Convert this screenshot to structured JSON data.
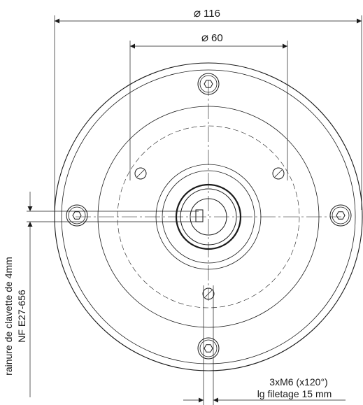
{
  "dimensions": {
    "outer_diameter": {
      "symbol": "⌀",
      "value": "116"
    },
    "bolt_circle_diameter": {
      "symbol": "⌀",
      "value": "60"
    }
  },
  "side_note": {
    "line1": "rainure de clavette de 4mm",
    "line2": "NF E27-656"
  },
  "thread_note": {
    "line1": "3xM6 (x120°)",
    "line2": "lg filetage 15 mm"
  },
  "colors": {
    "line": "#1a1a1a",
    "background": "#ffffff"
  }
}
